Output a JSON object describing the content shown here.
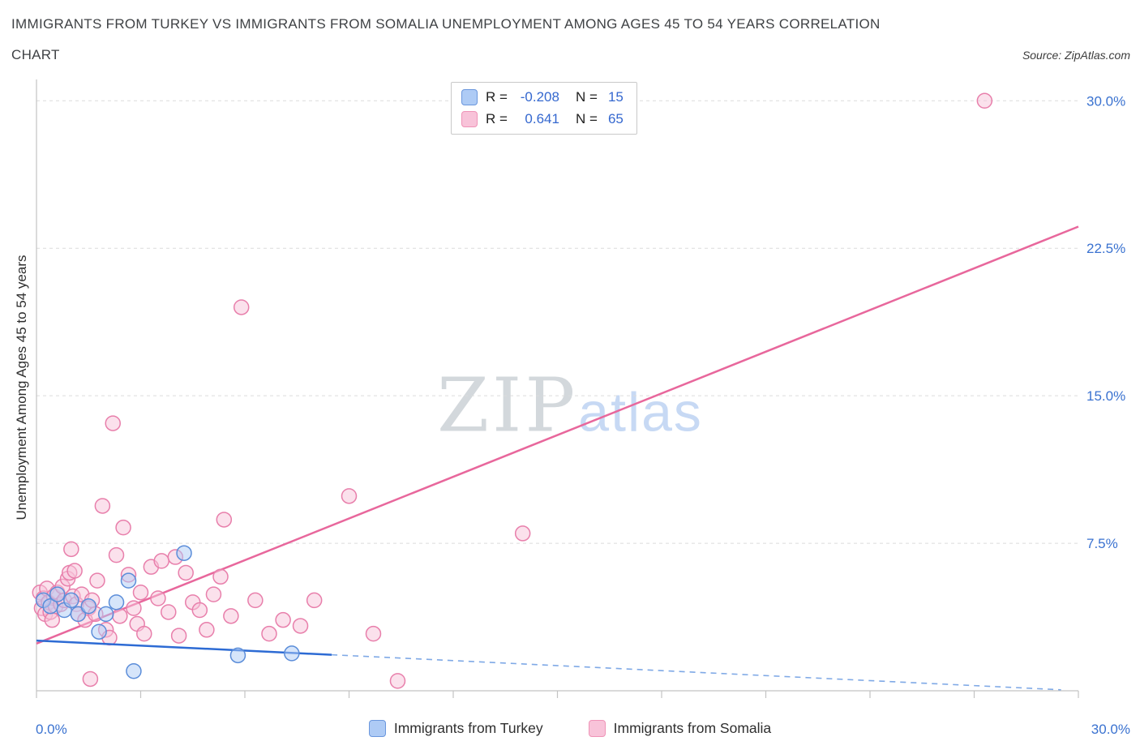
{
  "header": {
    "title_line1": "IMMIGRANTS FROM TURKEY VS IMMIGRANTS FROM SOMALIA UNEMPLOYMENT AMONG AGES 45 TO 54 YEARS CORRELATION",
    "title_line2": "CHART",
    "source": "Source: ZipAtlas.com"
  },
  "watermark": {
    "zip": "ZIP",
    "atlas": "atlas"
  },
  "legend_box": {
    "rows": [
      {
        "series": "turkey",
        "r_label": "R =",
        "r_value": "-0.208",
        "n_label": "N =",
        "n_value": "15"
      },
      {
        "series": "somalia",
        "r_label": "R =",
        "r_value": "0.641",
        "n_label": "N =",
        "n_value": "65"
      }
    ]
  },
  "bottom_legend": {
    "items": [
      {
        "label": "Immigrants from Turkey"
      },
      {
        "label": "Immigrants from Somalia"
      }
    ]
  },
  "theme": {
    "tick_label_color": "#3a72d0",
    "grid_color": "#dcdcdc",
    "axis_color": "#c3c3c3",
    "turkey_fill": "#aecbf5",
    "turkey_stroke": "#5b8dd9",
    "turkey_trend": "#2d6bd4",
    "turkey_trend_dash": "#7fa9e6",
    "somalia_fill": "#f8c3d9",
    "somalia_stroke": "#e87fab",
    "somalia_trend": "#e8679c"
  },
  "chart_data": {
    "type": "scatter",
    "title": "Immigrants from Turkey vs Immigrants from Somalia Unemployment Among Ages 45 to 54 years Correlation",
    "xlabel": "",
    "ylabel": "Unemployment Among Ages 45 to 54 years",
    "xlim": [
      0,
      30
    ],
    "ylim": [
      0,
      31
    ],
    "x_tick_labels": [
      "0.0%",
      "30.0%"
    ],
    "x_tick_step": 3,
    "grid": "horizontal-dashed",
    "legend_position": "top-center",
    "y_ticks": [
      {
        "value": 7.5,
        "label": "7.5%"
      },
      {
        "value": 15,
        "label": "15.0%"
      },
      {
        "value": 22.5,
        "label": "22.5%"
      },
      {
        "value": 30,
        "label": "30.0%"
      }
    ],
    "series": [
      {
        "name": "Immigrants from Turkey",
        "R": -0.208,
        "N": 15,
        "trend": {
          "x0": 0,
          "y0": 2.55,
          "x1": 29.5,
          "y1": 0.05,
          "solid_until": 8.5,
          "dashed_extension": true
        },
        "points": [
          [
            0.2,
            4.6
          ],
          [
            0.4,
            4.3
          ],
          [
            0.6,
            4.9
          ],
          [
            0.8,
            4.1
          ],
          [
            1.0,
            4.6
          ],
          [
            1.2,
            3.9
          ],
          [
            1.5,
            4.3
          ],
          [
            1.8,
            3.0
          ],
          [
            2.0,
            3.9
          ],
          [
            2.3,
            4.5
          ],
          [
            2.65,
            5.6
          ],
          [
            2.8,
            1.0
          ],
          [
            4.25,
            7.0
          ],
          [
            5.8,
            1.8
          ],
          [
            7.35,
            1.9
          ]
        ]
      },
      {
        "name": "Immigrants from Somalia",
        "R": 0.641,
        "N": 65,
        "trend": {
          "x0": 0,
          "y0": 2.4,
          "x1": 30,
          "y1": 23.6
        },
        "points": [
          [
            0.1,
            5.0
          ],
          [
            0.15,
            4.2
          ],
          [
            0.2,
            4.7
          ],
          [
            0.25,
            3.9
          ],
          [
            0.3,
            5.2
          ],
          [
            0.35,
            4.5
          ],
          [
            0.4,
            4.0
          ],
          [
            0.45,
            3.6
          ],
          [
            0.5,
            4.8
          ],
          [
            0.55,
            4.3
          ],
          [
            0.6,
            5.0
          ],
          [
            0.7,
            4.4
          ],
          [
            0.75,
            5.3
          ],
          [
            0.8,
            4.6
          ],
          [
            0.9,
            5.7
          ],
          [
            0.95,
            6.0
          ],
          [
            1.0,
            7.2
          ],
          [
            1.05,
            4.8
          ],
          [
            1.1,
            6.1
          ],
          [
            1.15,
            4.4
          ],
          [
            1.2,
            3.9
          ],
          [
            1.3,
            4.9
          ],
          [
            1.4,
            3.6
          ],
          [
            1.5,
            4.2
          ],
          [
            1.55,
            0.6
          ],
          [
            1.6,
            4.6
          ],
          [
            1.7,
            3.9
          ],
          [
            1.75,
            5.6
          ],
          [
            1.9,
            9.4
          ],
          [
            2.0,
            3.1
          ],
          [
            2.1,
            2.7
          ],
          [
            2.2,
            13.6
          ],
          [
            2.3,
            6.9
          ],
          [
            2.4,
            3.8
          ],
          [
            2.5,
            8.3
          ],
          [
            2.65,
            5.9
          ],
          [
            2.8,
            4.2
          ],
          [
            2.9,
            3.4
          ],
          [
            3.0,
            5.0
          ],
          [
            3.1,
            2.9
          ],
          [
            3.3,
            6.3
          ],
          [
            3.5,
            4.7
          ],
          [
            3.6,
            6.6
          ],
          [
            3.8,
            4.0
          ],
          [
            4.0,
            6.8
          ],
          [
            4.1,
            2.8
          ],
          [
            4.3,
            6.0
          ],
          [
            4.5,
            4.5
          ],
          [
            4.7,
            4.1
          ],
          [
            4.9,
            3.1
          ],
          [
            5.1,
            4.9
          ],
          [
            5.3,
            5.8
          ],
          [
            5.4,
            8.7
          ],
          [
            5.6,
            3.8
          ],
          [
            5.9,
            19.5
          ],
          [
            6.3,
            4.6
          ],
          [
            6.7,
            2.9
          ],
          [
            7.1,
            3.6
          ],
          [
            7.6,
            3.3
          ],
          [
            8.0,
            4.6
          ],
          [
            9.0,
            9.9
          ],
          [
            9.7,
            2.9
          ],
          [
            10.4,
            0.5
          ],
          [
            14.0,
            8.0
          ],
          [
            27.3,
            30.0
          ]
        ]
      }
    ]
  }
}
